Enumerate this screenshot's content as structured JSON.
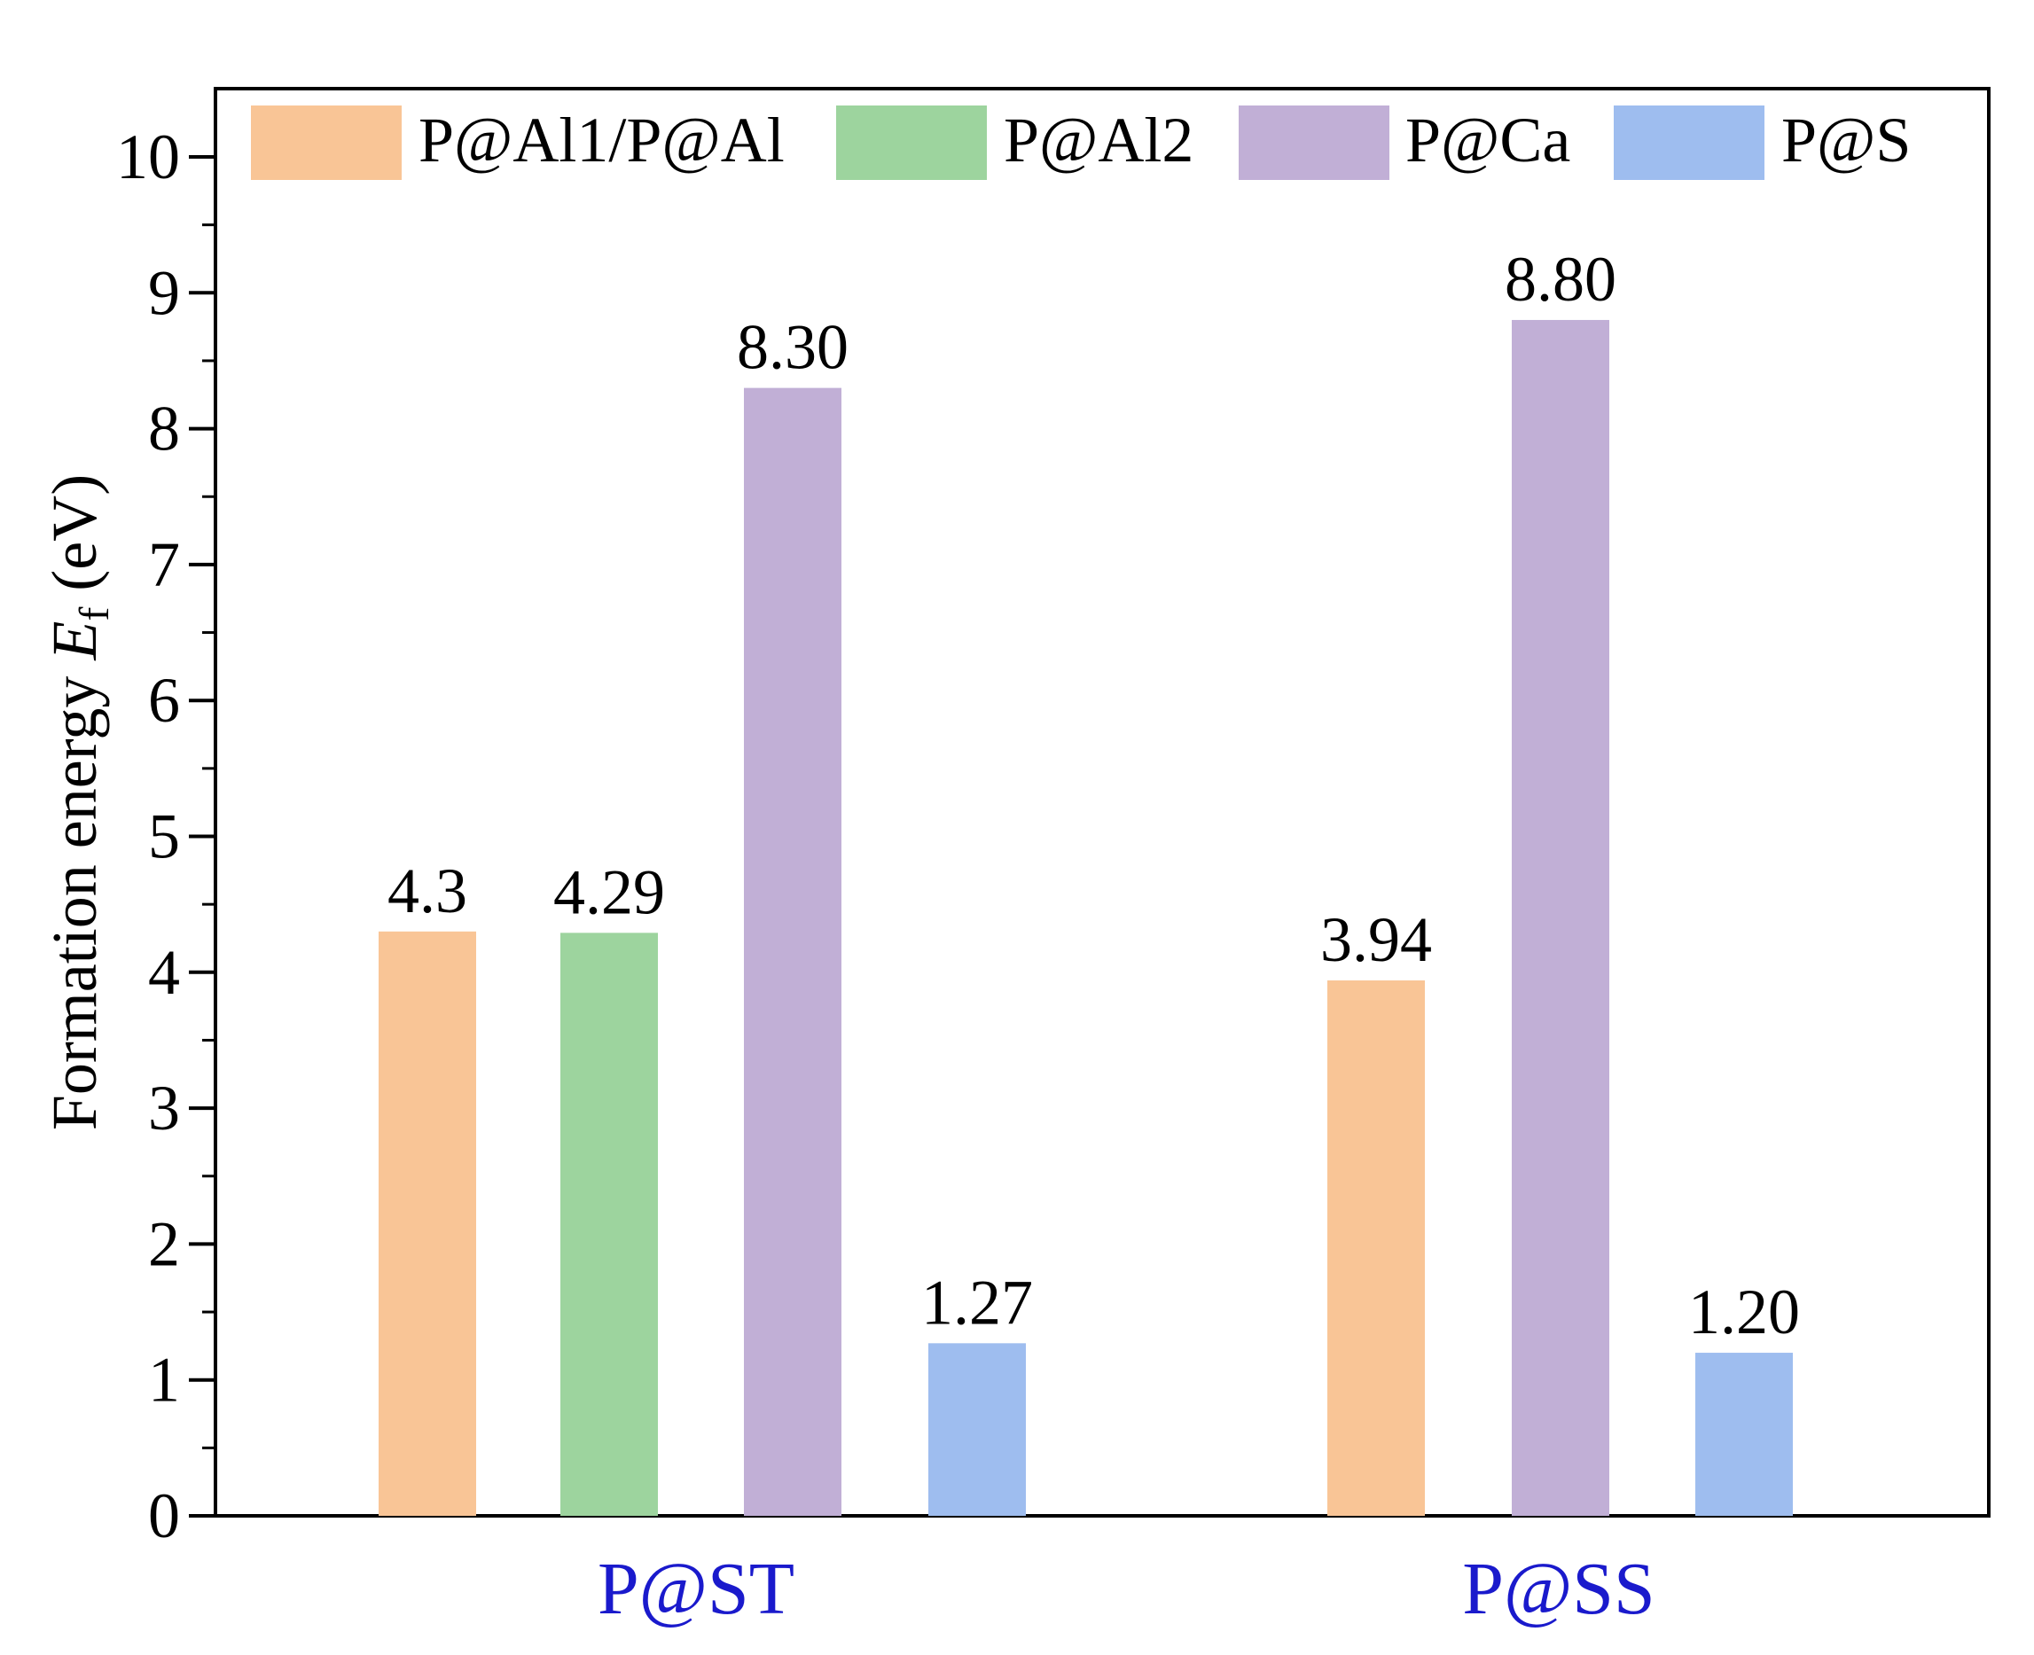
{
  "chart_data": {
    "type": "bar",
    "title": "",
    "xlabel": "",
    "ylabel_main": "Formation energy ",
    "ylabel_symbol": "E",
    "ylabel_subscript": "f",
    "ylabel_unit": " (eV)",
    "ylim": [
      0,
      10.5
    ],
    "yticks": [
      0,
      1,
      2,
      3,
      4,
      5,
      6,
      7,
      8,
      9,
      10
    ],
    "grid": false,
    "legend_position": "top",
    "categories": [
      "P@ST",
      "P@SS"
    ],
    "series": [
      {
        "name": "P@Al1/P@Al",
        "color": "#F9C596",
        "values": [
          4.3,
          3.94
        ],
        "labels": [
          "4.3",
          "3.94"
        ]
      },
      {
        "name": "P@Al2",
        "color": "#9DD49E",
        "values": [
          4.29,
          null
        ],
        "labels": [
          "4.29",
          null
        ]
      },
      {
        "name": "P@Ca",
        "color": "#C1AFD6",
        "values": [
          8.3,
          8.8
        ],
        "labels": [
          "8.30",
          "8.80"
        ]
      },
      {
        "name": "P@S",
        "color": "#9EBDEF",
        "values": [
          1.27,
          1.2
        ],
        "labels": [
          "1.27",
          "1.20"
        ]
      }
    ],
    "category_label_color": "#1A1ACC"
  }
}
